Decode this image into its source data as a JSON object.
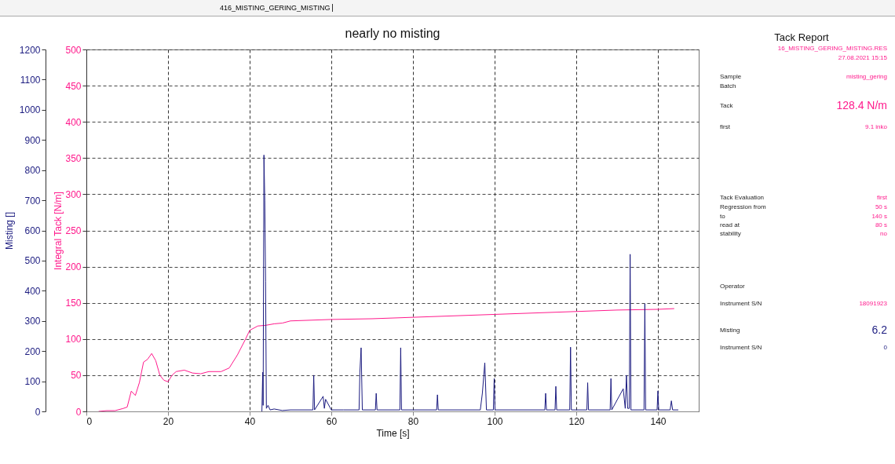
{
  "chart_data": {
    "type": "line",
    "title": "nearly no misting",
    "xlabel": "Time [s]",
    "ylabel": "Integral Tack [N/m]",
    "y2label": "Misting []",
    "xlim": [
      0,
      150
    ],
    "xticks": [
      0,
      20,
      40,
      60,
      80,
      100,
      120,
      140
    ],
    "ylim": [
      0,
      500
    ],
    "yticks": [
      0,
      50,
      100,
      150,
      200,
      250,
      300,
      350,
      400,
      450,
      500
    ],
    "y2lim": [
      0,
      1200
    ],
    "y2ticks": [
      0,
      100,
      200,
      300,
      400,
      500,
      600,
      700,
      800,
      900,
      1000,
      1100,
      1200
    ],
    "grid": true,
    "series": [
      {
        "color": "#ff1a8c",
        "axis": "y",
        "x": [
          3,
          5,
          7,
          9,
          10,
          11,
          12,
          13,
          14,
          15,
          16,
          17,
          18,
          19,
          20,
          21,
          22,
          24,
          26,
          28,
          30,
          33,
          35,
          37,
          39,
          40,
          42,
          44,
          46,
          48,
          50,
          60,
          70,
          80,
          90,
          100,
          110,
          120,
          130,
          140,
          144
        ],
        "values": [
          0,
          1,
          1,
          4,
          6,
          28,
          22,
          40,
          68,
          72,
          80,
          70,
          50,
          43,
          41,
          50,
          55,
          57,
          53,
          52,
          55,
          55,
          60,
          78,
          100,
          112,
          118,
          119,
          121,
          122,
          125,
          127,
          128,
          130,
          132,
          134,
          136,
          138,
          140,
          141,
          142
        ]
      },
      {
        "color": "#1c1c80",
        "axis": "y2",
        "x": [
          43.0,
          43.2,
          43.3,
          43.5,
          43.7,
          43.9,
          44.1,
          44.5,
          45,
          46,
          48,
          50,
          55.5,
          55.7,
          55.9,
          58,
          58.3,
          58.6,
          60,
          63,
          66.8,
          67.0,
          67.3,
          67.6,
          70.8,
          71,
          71.2,
          76.8,
          77,
          77.2,
          85.8,
          86,
          86.2,
          96.5,
          97,
          97.6,
          98,
          99.7,
          99.9,
          100.1,
          112.3,
          112.5,
          112.7,
          114.8,
          115,
          115.2,
          118.4,
          118.6,
          118.8,
          122.6,
          122.8,
          123,
          128.3,
          128.5,
          128.7,
          131.5,
          132,
          132.3,
          132.6,
          133,
          133.2,
          133.4,
          136.6,
          136.8,
          137,
          139.8,
          140,
          140.2,
          143,
          143.3,
          143.6,
          145
        ],
        "values": [
          0,
          130,
          20,
          850,
          700,
          430,
          10,
          20,
          5,
          8,
          3,
          5,
          5,
          120,
          5,
          50,
          10,
          40,
          5,
          5,
          5,
          130,
          211,
          5,
          5,
          60,
          5,
          5,
          211,
          5,
          5,
          55,
          5,
          5,
          60,
          161,
          5,
          5,
          109,
          5,
          5,
          60,
          5,
          5,
          83,
          5,
          5,
          213,
          5,
          5,
          95,
          5,
          5,
          109,
          5,
          75,
          10,
          120,
          10,
          10,
          521,
          5,
          5,
          357,
          5,
          5,
          68,
          5,
          5,
          35,
          5,
          5
        ]
      }
    ],
    "annotations": [
      "Tack Report",
      "16_MISTING_GERING_MISTING.RES",
      "27.08.2021 15:15",
      "Sample",
      "misting_gering",
      "Batch",
      "Tack",
      "128.4 N/m",
      "first",
      "9.1 inko",
      "Tack Evaluation",
      "first",
      "Regression from",
      "50 s",
      "to",
      "140 s",
      "read at",
      "80 s",
      "stability",
      "no",
      "Operator",
      "Instrument S/N",
      "18091923",
      "Misting",
      "6.2",
      "Instrument S/N",
      "0",
      "416_MISTING_GERING_MISTING"
    ]
  }
}
